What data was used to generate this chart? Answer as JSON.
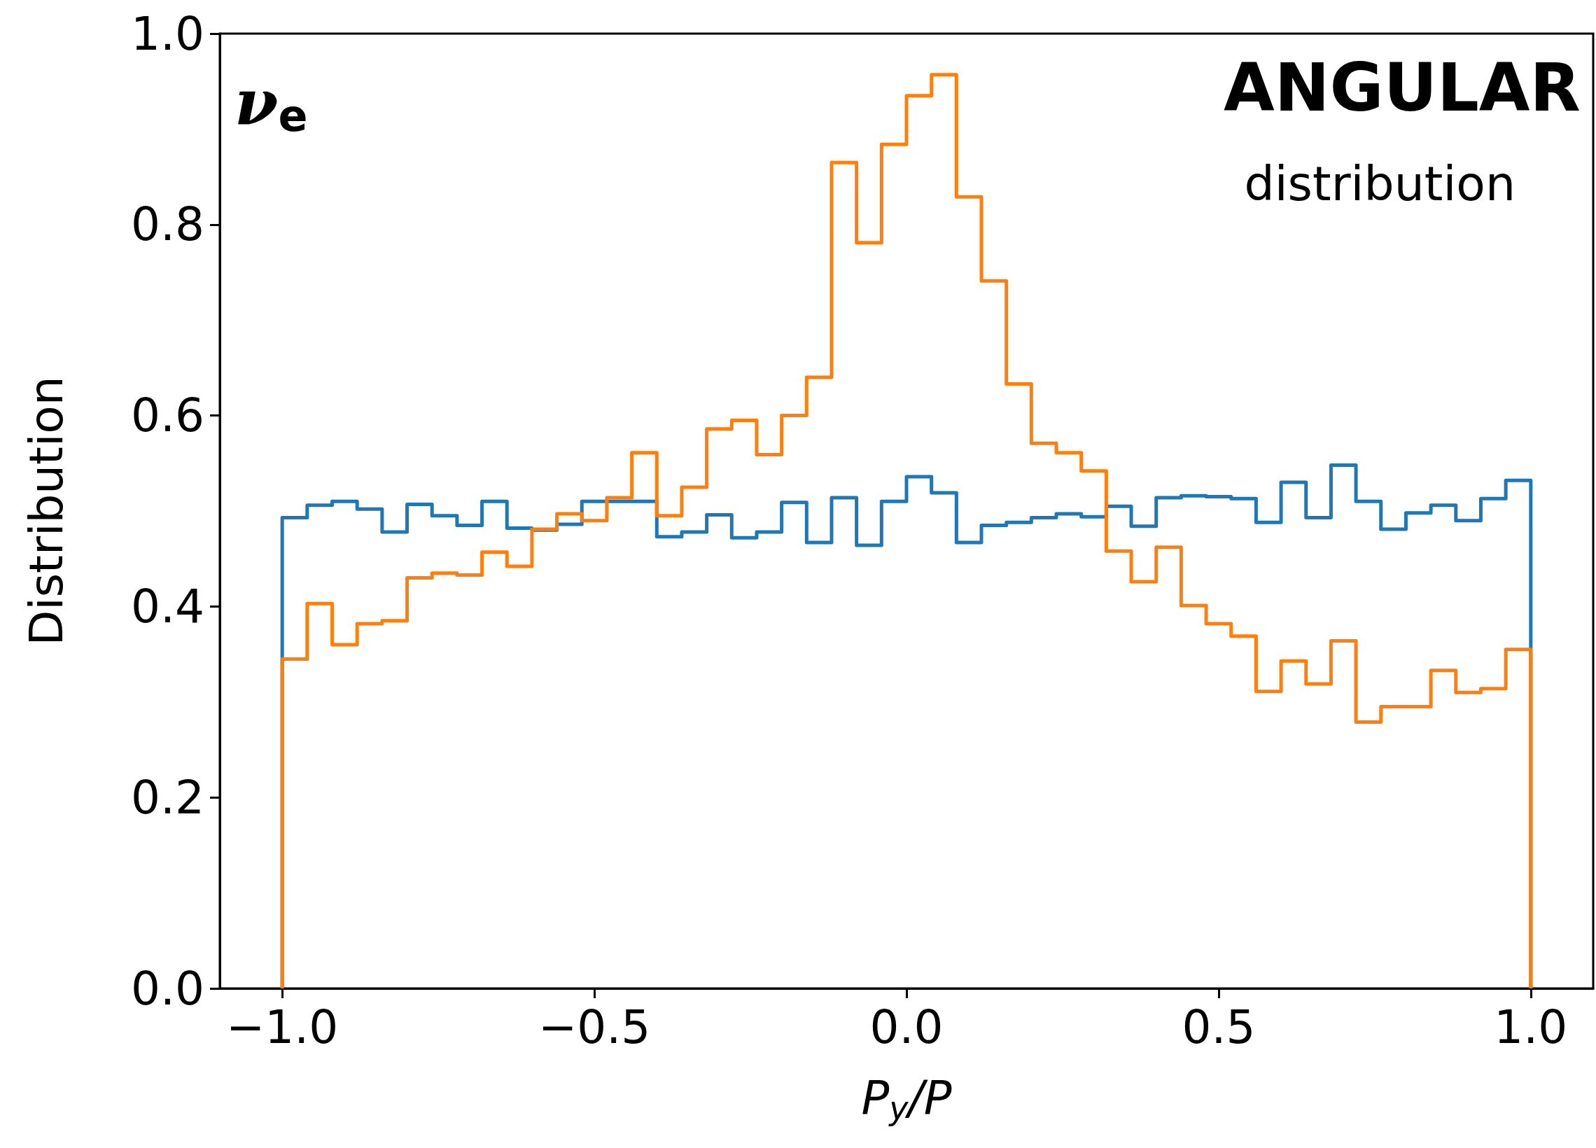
{
  "chart_data": {
    "type": "histogram",
    "xlabel": "P$_{y}$/P",
    "ylabel": "Distribution",
    "annotations": [
      "ν$_{e}$",
      "ANGULAR",
      "distribution"
    ],
    "bins": [
      -1.0,
      -0.96,
      -0.92,
      -0.88,
      -0.84,
      -0.8,
      -0.76,
      -0.72,
      -0.68,
      -0.64,
      -0.6,
      -0.56,
      -0.52,
      -0.48,
      -0.44,
      -0.4,
      -0.36,
      -0.32,
      -0.28,
      -0.24,
      -0.2,
      -0.16,
      -0.12,
      -0.08,
      -0.04,
      0.0,
      0.04,
      0.08,
      0.12,
      0.16,
      0.2,
      0.24,
      0.28,
      0.32,
      0.36,
      0.4,
      0.44,
      0.48,
      0.52,
      0.56,
      0.6,
      0.64,
      0.68,
      0.72,
      0.76,
      0.8,
      0.84,
      0.88,
      0.92,
      0.96,
      1.0
    ],
    "series": [
      {
        "color": "#1f77b4",
        "values": [
          0.493,
          0.506,
          0.51,
          0.502,
          0.478,
          0.507,
          0.495,
          0.485,
          0.51,
          0.482,
          0.48,
          0.486,
          0.51,
          0.51,
          0.51,
          0.473,
          0.478,
          0.496,
          0.472,
          0.478,
          0.509,
          0.467,
          0.514,
          0.464,
          0.51,
          0.536,
          0.519,
          0.467,
          0.485,
          0.488,
          0.493,
          0.497,
          0.494,
          0.505,
          0.484,
          0.514,
          0.516,
          0.515,
          0.513,
          0.488,
          0.53,
          0.493,
          0.548,
          0.51,
          0.481,
          0.498,
          0.506,
          0.49,
          0.513,
          0.532
        ]
      },
      {
        "color": "#ff7f0e",
        "values": [
          0.345,
          0.403,
          0.36,
          0.382,
          0.385,
          0.43,
          0.435,
          0.433,
          0.457,
          0.442,
          0.481,
          0.497,
          0.49,
          0.514,
          0.561,
          0.495,
          0.525,
          0.586,
          0.595,
          0.559,
          0.6,
          0.64,
          0.865,
          0.781,
          0.884,
          0.935,
          0.957,
          0.829,
          0.741,
          0.633,
          0.571,
          0.561,
          0.542,
          0.458,
          0.426,
          0.462,
          0.401,
          0.382,
          0.369,
          0.311,
          0.343,
          0.319,
          0.364,
          0.279,
          0.295,
          0.295,
          0.333,
          0.31,
          0.314,
          0.355
        ]
      }
    ],
    "xlim": [
      -1.1,
      1.1
    ],
    "xticks": [
      {
        "value": -1,
        "label": "−1.0"
      },
      {
        "value": -0.5,
        "label": "−0.5"
      },
      {
        "value": 0,
        "label": "0.0"
      },
      {
        "value": 0.5,
        "label": "0.5"
      },
      {
        "value": 1,
        "label": "1.0"
      }
    ],
    "ylim": [
      0,
      1
    ],
    "yticks": [
      {
        "value": 0,
        "label": "0.0"
      },
      {
        "value": 0.2,
        "label": "0.2"
      },
      {
        "value": 0.4,
        "label": "0.4"
      },
      {
        "value": 0.6,
        "label": "0.6"
      },
      {
        "value": 0.8,
        "label": "0.8"
      },
      {
        "value": 1,
        "label": "1.0"
      }
    ],
    "grid": false
  }
}
